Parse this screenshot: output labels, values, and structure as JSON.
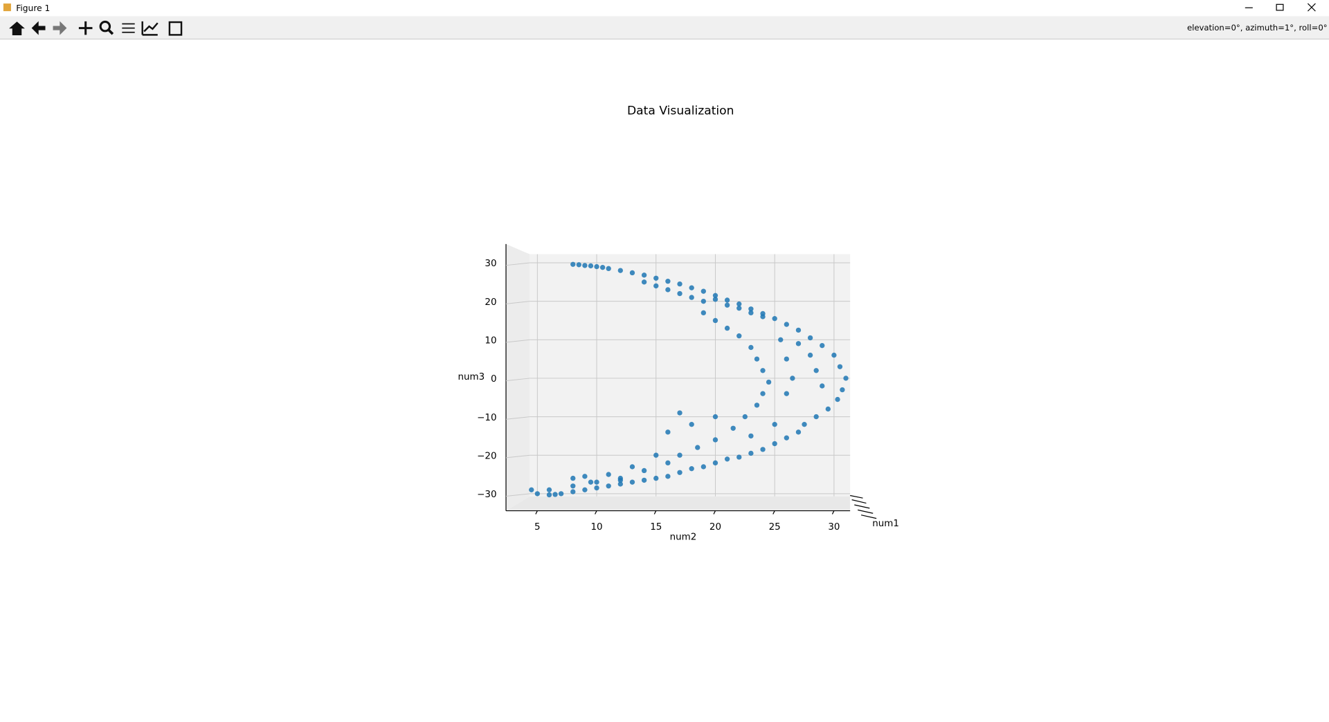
{
  "window": {
    "title": "Figure 1",
    "status": "elevation=0°, azimuth=1°, roll=0°"
  },
  "chart_data": {
    "type": "scatter",
    "title": "Data Visualization",
    "xlabel": "num2",
    "ylabel": "num3",
    "zlabel": "num1",
    "color": "#1f77b4",
    "grid": true,
    "xlim": [
      2.5,
      32
    ],
    "ylim": [
      -34,
      34
    ],
    "xticks": [
      5,
      10,
      15,
      20,
      25,
      30
    ],
    "yticks": [
      {
        "value": -30,
        "label": "−30"
      },
      {
        "value": -20,
        "label": "−20"
      },
      {
        "value": -10,
        "label": "−10"
      },
      0,
      10,
      20,
      30
    ],
    "x": [
      8,
      8.5,
      9,
      9.5,
      10,
      10.5,
      11,
      12,
      13,
      14,
      15,
      16,
      17,
      18,
      19,
      20,
      21,
      22,
      23,
      24,
      25,
      26,
      27,
      28,
      29,
      30,
      30.5,
      31,
      30.7,
      30.3,
      29.5,
      28.5,
      27.5,
      14,
      15,
      16,
      17,
      18,
      19,
      20,
      21,
      22,
      23,
      24,
      19,
      20,
      21,
      22,
      23,
      23.5,
      24,
      24.5,
      24,
      23.5,
      22.5,
      21.5,
      20,
      18.5,
      17,
      16,
      14,
      12,
      10,
      8,
      6,
      5,
      4.5,
      27,
      26,
      25,
      24,
      23,
      22,
      21,
      20,
      19,
      18,
      17,
      16,
      15,
      14,
      13,
      12,
      11,
      10,
      9,
      8,
      7,
      6.5,
      6,
      25.5,
      26,
      26.5,
      26,
      20,
      18,
      16,
      17,
      15,
      13,
      11,
      9,
      8,
      9.5,
      12,
      23,
      25,
      29,
      28.5,
      28,
      27
    ],
    "values": [
      29.6,
      29.5,
      29.3,
      29.2,
      29,
      28.8,
      28.5,
      28,
      27.4,
      26.8,
      26,
      25.2,
      24.5,
      23.5,
      22.6,
      21.5,
      20.3,
      19.3,
      18,
      16.8,
      15.5,
      14,
      12.5,
      10.5,
      8.5,
      6,
      3,
      0,
      -3,
      -5.5,
      -8,
      -10,
      -12,
      25,
      24,
      23,
      22,
      21,
      20,
      20.5,
      19,
      18.2,
      17,
      16,
      17,
      15,
      13,
      11,
      8,
      5,
      2,
      -1,
      -4,
      -7,
      -10,
      -13,
      -16,
      -18,
      -20,
      -22,
      -24,
      -26,
      -27,
      -28,
      -29,
      -30,
      -29,
      -14,
      -15.5,
      -17,
      -18.5,
      -19.5,
      -20.5,
      -21,
      -22,
      -23,
      -23.5,
      -24.5,
      -25.5,
      -26,
      -26.5,
      -27,
      -27.5,
      -28,
      -28.5,
      -29,
      -29.5,
      -30,
      -30.2,
      -30.3,
      10,
      5,
      0,
      -4,
      -10,
      -12,
      -14,
      -9,
      -20,
      -23,
      -25,
      -25.5,
      -26,
      -27,
      -26.5,
      -15,
      -12,
      -2,
      2,
      6,
      9
    ]
  }
}
